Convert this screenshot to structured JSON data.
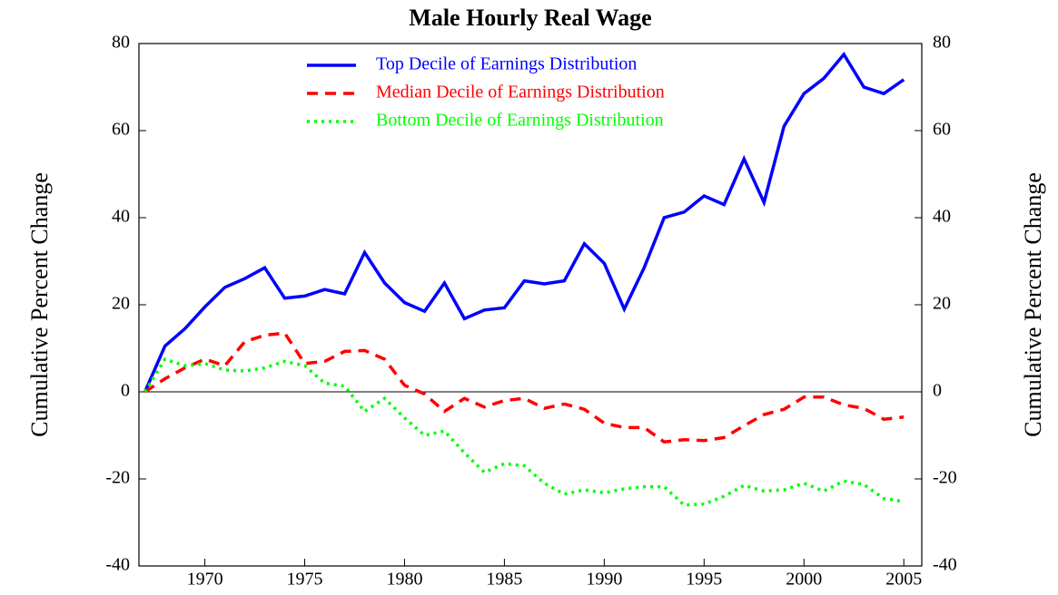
{
  "chart_data": {
    "type": "line",
    "title": "Male Hourly Real Wage",
    "y_label": "Cumulative Percent Change",
    "y2_label": "Cumulative Percent Change",
    "x": [
      1967,
      1968,
      1969,
      1970,
      1971,
      1972,
      1973,
      1974,
      1975,
      1976,
      1977,
      1978,
      1979,
      1980,
      1981,
      1982,
      1983,
      1984,
      1985,
      1986,
      1987,
      1988,
      1989,
      1990,
      1991,
      1992,
      1993,
      1994,
      1995,
      1996,
      1997,
      1998,
      1999,
      2000,
      2001,
      2002,
      2003,
      2004,
      2005
    ],
    "series": [
      {
        "name": "Top Decile of Earnings Distribution",
        "color": "#0000ff",
        "dash": "solid",
        "values": [
          0,
          10.5,
          14.5,
          19.5,
          24,
          26,
          28.5,
          21.5,
          22,
          23.5,
          22.5,
          32,
          25,
          20.5,
          18.5,
          25,
          16.8,
          18.8,
          19.3,
          25.5,
          24.8,
          25.5,
          34,
          29.5,
          19,
          28.5,
          40,
          41.3,
          45,
          43,
          53.5,
          43.5,
          61,
          68.5,
          72,
          77.5,
          70,
          68.5,
          71.7
        ]
      },
      {
        "name": "Median Decile of Earnings Distribution",
        "color": "#ff0000",
        "dash": "dashed",
        "values": [
          0,
          3,
          5.5,
          7.5,
          6,
          11.5,
          13,
          13.5,
          6.5,
          7,
          9.3,
          9.5,
          7.5,
          1.5,
          -0.5,
          -4.5,
          -1.5,
          -3.5,
          -2,
          -1.5,
          -3.8,
          -2.8,
          -4,
          -7.2,
          -8.2,
          -8.2,
          -11.5,
          -11,
          -11.2,
          -10.5,
          -7.8,
          -5.2,
          -4,
          -1.2,
          -1.2,
          -3,
          -3.8,
          -6.3,
          -5.8
        ]
      },
      {
        "name": "Bottom Decile of Earnings Distribution",
        "color": "#00ff00",
        "dash": "dotted",
        "values": [
          0,
          7.5,
          6,
          6.5,
          5,
          4.8,
          5.5,
          7,
          6,
          2,
          1.3,
          -4.5,
          -1.5,
          -6,
          -10,
          -9,
          -14,
          -18.5,
          -16.5,
          -17,
          -21,
          -23.5,
          -22.5,
          -23.2,
          -22.3,
          -21.8,
          -21.8,
          -26,
          -25.8,
          -24,
          -21.5,
          -22.8,
          -22.5,
          -21,
          -22.8,
          -20.5,
          -21.3,
          -24.5,
          -25.2
        ]
      }
    ],
    "xlim": [
      1966.7,
      2005.9
    ],
    "xticks": [
      1970,
      1975,
      1980,
      1985,
      1990,
      1995,
      2000,
      2005
    ],
    "ylim": [
      -40,
      80
    ],
    "yticks": [
      -40,
      -20,
      0,
      20,
      40,
      60,
      80
    ],
    "y2lim": [
      -40,
      80
    ],
    "y2ticks": [
      -40,
      -20,
      0,
      20,
      40,
      60,
      80
    ],
    "zero_line": true,
    "legend": "top"
  }
}
